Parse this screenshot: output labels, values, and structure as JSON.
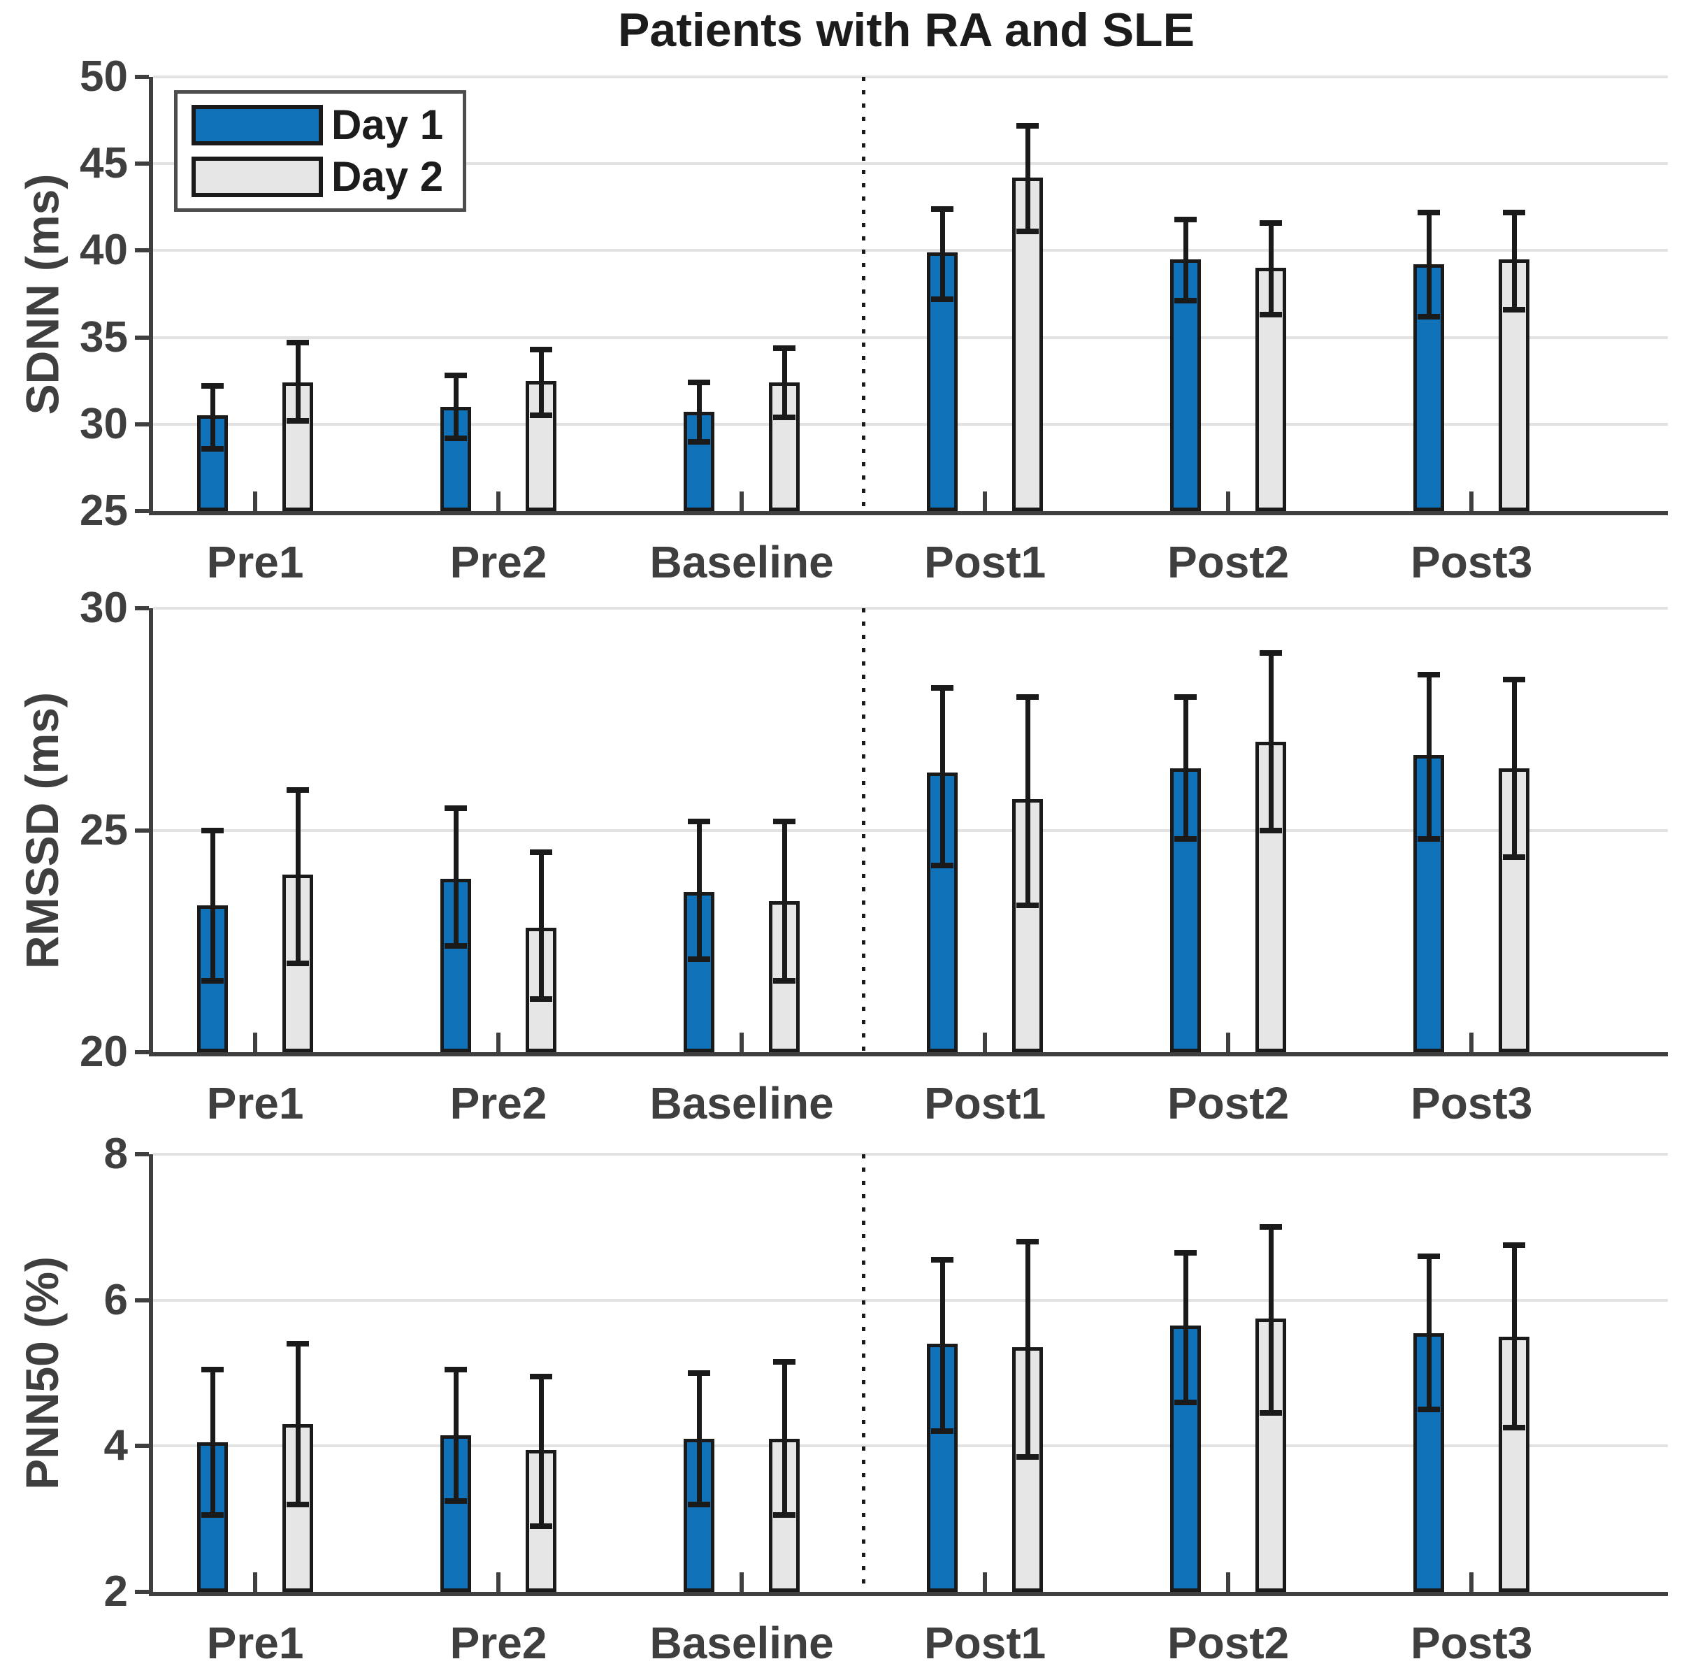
{
  "title": "Patients with RA and SLE",
  "colors": {
    "day1_fill": "#1072B8",
    "day2_fill": "#E6E6E6",
    "bar_edge": "#1A1A1A",
    "error_bar": "#1A1A1A",
    "axis": "#3F3F3F",
    "grid": "#E2E2E2",
    "divider": "#1A1A1A",
    "title_text": "#1C1C1C",
    "tick_text": "#3F3F3F"
  },
  "legend": {
    "position": "top-left",
    "items": [
      {
        "label": "Day 1",
        "color": "#1072B8"
      },
      {
        "label": "Day 2",
        "color": "#E6E6E6"
      }
    ]
  },
  "chart_data": [
    {
      "type": "bar",
      "ylabel": "SDNN (ms)",
      "ylim": [
        25,
        50
      ],
      "yticks": [
        25,
        30,
        35,
        40,
        45,
        50
      ],
      "grid": true,
      "categories": [
        "Pre1",
        "Pre2",
        "Baseline",
        "Post1",
        "Post2",
        "Post3"
      ],
      "divider_between": [
        "Baseline",
        "Post1"
      ],
      "series": [
        {
          "name": "Day 1",
          "values": [
            30.5,
            31.0,
            30.7,
            39.9,
            39.5,
            39.2
          ],
          "err_lo": [
            28.6,
            29.2,
            29.0,
            37.2,
            37.1,
            36.2
          ],
          "err_hi": [
            32.2,
            32.8,
            32.4,
            42.4,
            41.8,
            42.2
          ]
        },
        {
          "name": "Day 2",
          "values": [
            32.4,
            32.5,
            32.4,
            44.2,
            39.0,
            39.5
          ],
          "err_lo": [
            30.2,
            30.5,
            30.4,
            41.1,
            36.3,
            36.6
          ],
          "err_hi": [
            34.7,
            34.3,
            34.4,
            47.2,
            41.6,
            42.2
          ]
        }
      ]
    },
    {
      "type": "bar",
      "ylabel": "RMSSD (ms)",
      "ylim": [
        20,
        30
      ],
      "yticks": [
        20,
        25,
        30
      ],
      "grid": true,
      "categories": [
        "Pre1",
        "Pre2",
        "Baseline",
        "Post1",
        "Post2",
        "Post3"
      ],
      "divider_between": [
        "Baseline",
        "Post1"
      ],
      "series": [
        {
          "name": "Day 1",
          "values": [
            23.3,
            23.9,
            23.6,
            26.3,
            26.4,
            26.7
          ],
          "err_lo": [
            21.6,
            22.4,
            22.1,
            24.2,
            24.8,
            24.8
          ],
          "err_hi": [
            25.0,
            25.5,
            25.2,
            28.2,
            28.0,
            28.5
          ]
        },
        {
          "name": "Day 2",
          "values": [
            24.0,
            22.8,
            23.4,
            25.7,
            27.0,
            26.4
          ],
          "err_lo": [
            22.0,
            21.2,
            21.6,
            23.3,
            25.0,
            24.4
          ],
          "err_hi": [
            25.9,
            24.5,
            25.2,
            28.0,
            29.0,
            28.4
          ]
        }
      ]
    },
    {
      "type": "bar",
      "ylabel": "PNN50 (%)",
      "ylim": [
        2,
        8
      ],
      "yticks": [
        2,
        4,
        6,
        8
      ],
      "grid": true,
      "categories": [
        "Pre1",
        "Pre2",
        "Baseline",
        "Post1",
        "Post2",
        "Post3"
      ],
      "divider_between": [
        "Baseline",
        "Post1"
      ],
      "series": [
        {
          "name": "Day 1",
          "values": [
            4.05,
            4.15,
            4.1,
            5.4,
            5.65,
            5.55
          ],
          "err_lo": [
            3.05,
            3.25,
            3.2,
            4.2,
            4.6,
            4.5
          ],
          "err_hi": [
            5.05,
            5.05,
            5.0,
            6.55,
            6.65,
            6.6
          ]
        },
        {
          "name": "Day 2",
          "values": [
            4.3,
            3.95,
            4.1,
            5.35,
            5.75,
            5.5
          ],
          "err_lo": [
            3.2,
            2.9,
            3.05,
            3.85,
            4.45,
            4.25
          ],
          "err_hi": [
            5.4,
            4.95,
            5.15,
            6.8,
            7.0,
            6.75
          ]
        }
      ]
    }
  ]
}
